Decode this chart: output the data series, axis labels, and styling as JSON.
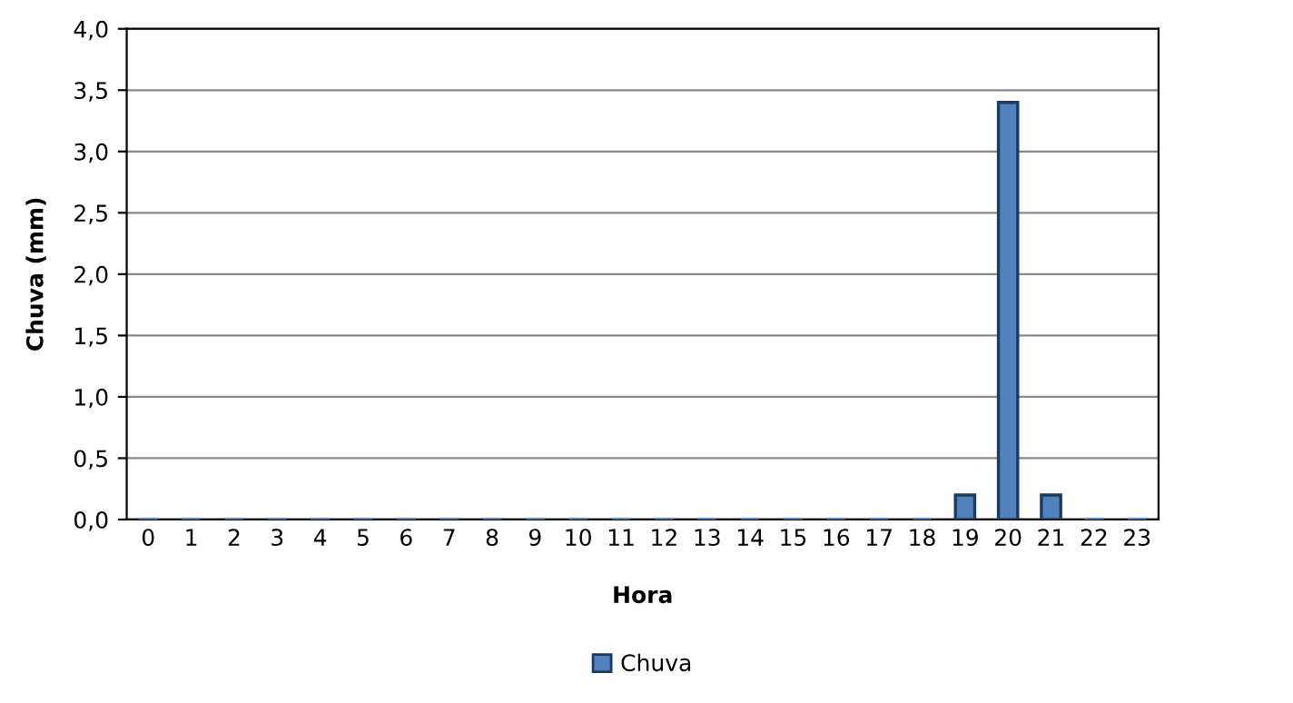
{
  "chart_data": {
    "type": "bar",
    "xlabel": "Hora",
    "ylabel": "Chuva (mm)",
    "categories": [
      "0",
      "1",
      "2",
      "3",
      "4",
      "5",
      "6",
      "7",
      "8",
      "9",
      "10",
      "11",
      "12",
      "13",
      "14",
      "15",
      "16",
      "17",
      "18",
      "19",
      "20",
      "21",
      "22",
      "23"
    ],
    "series": [
      {
        "name": "Chuva",
        "color": "#4f81bd",
        "values": [
          0,
          0,
          0,
          0,
          0,
          0,
          0,
          0,
          0,
          0,
          0,
          0,
          0,
          0,
          0,
          0,
          0,
          0,
          0,
          0.2,
          3.4,
          0.2,
          0,
          0
        ]
      }
    ],
    "ylim": [
      0,
      4
    ],
    "yticks": [
      {
        "value": 0,
        "label": "0,0"
      },
      {
        "value": 0.5,
        "label": "0,5"
      },
      {
        "value": 1,
        "label": "1,0"
      },
      {
        "value": 1.5,
        "label": "1,5"
      },
      {
        "value": 2,
        "label": "2,0"
      },
      {
        "value": 2.5,
        "label": "2,5"
      },
      {
        "value": 3,
        "label": "3,0"
      },
      {
        "value": 3.5,
        "label": "3,5"
      },
      {
        "value": 4,
        "label": "4,0"
      }
    ],
    "grid": "y",
    "legend": "bottom"
  }
}
